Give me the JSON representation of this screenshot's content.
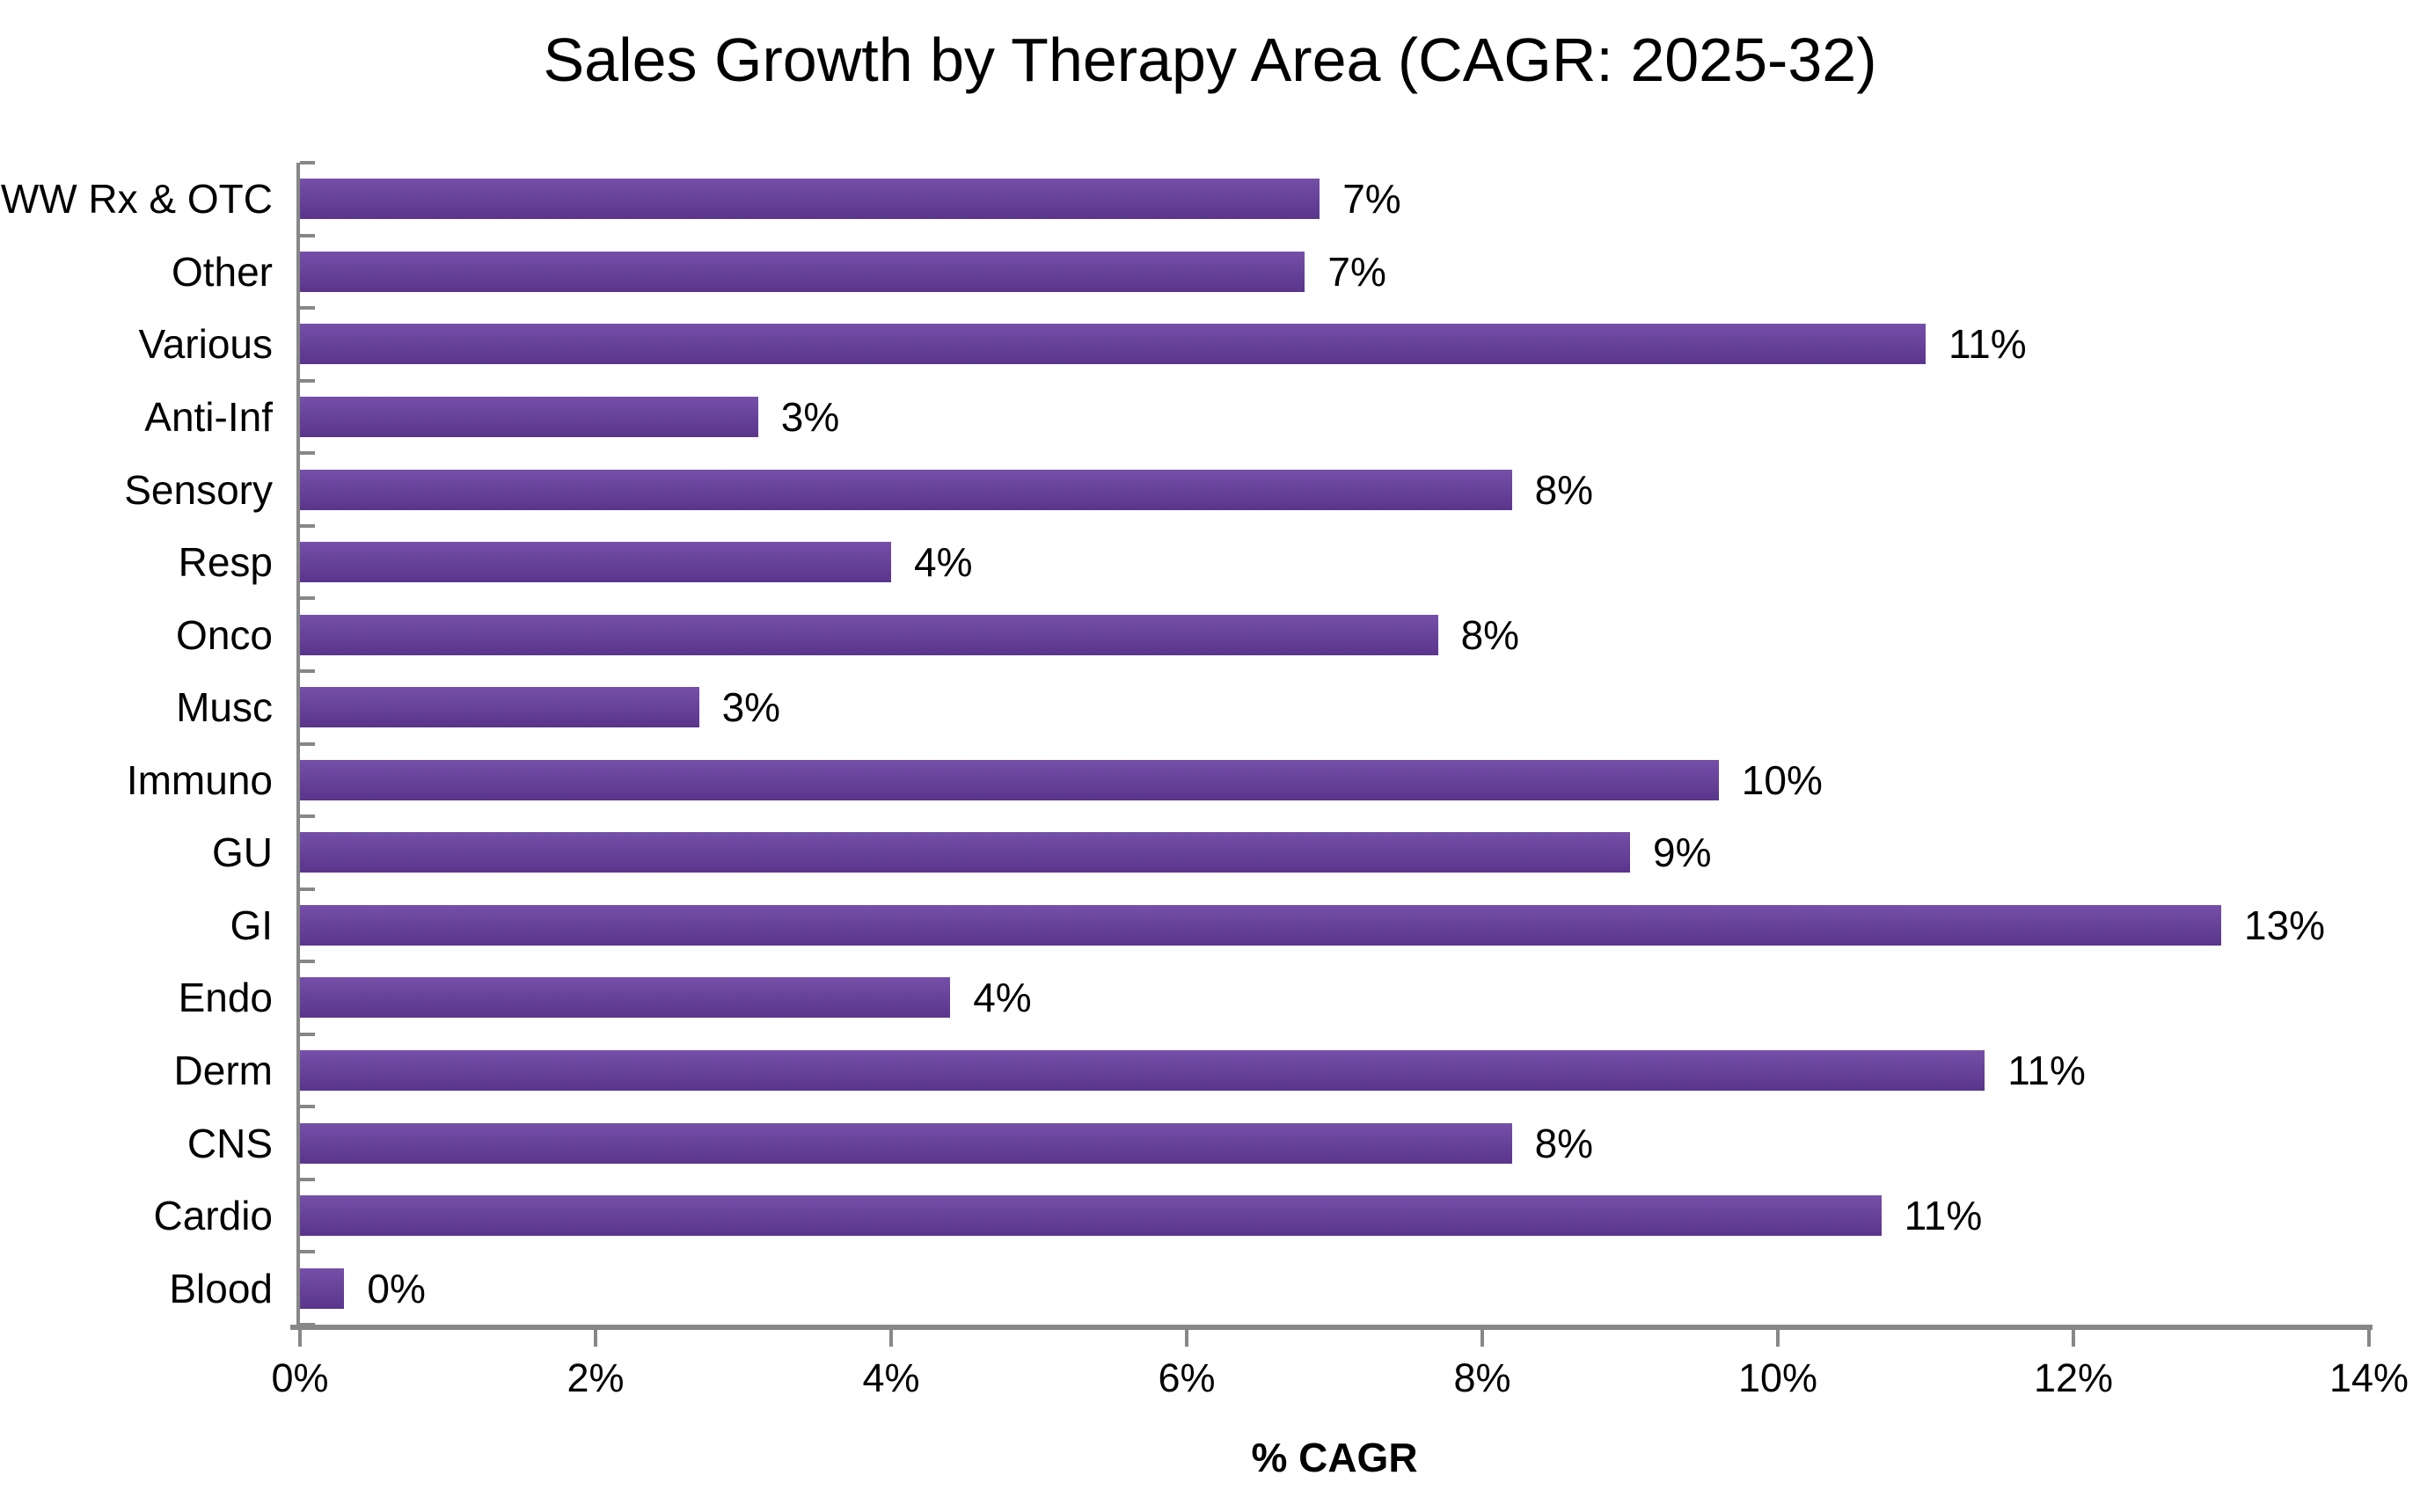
{
  "title": "Sales Growth by Therapy Area (CAGR: 2025-32)",
  "chart_data": {
    "type": "bar",
    "orientation": "horizontal",
    "title": "Sales Growth by Therapy Area (CAGR: 2025-32)",
    "xlabel": "% CAGR",
    "ylabel": "",
    "xlim": [
      0,
      14
    ],
    "x_tick_labels": [
      "0%",
      "2%",
      "4%",
      "6%",
      "8%",
      "10%",
      "12%",
      "14%"
    ],
    "grid": false,
    "legend": false,
    "bar_color": "#663C9E",
    "axis_color": "#878787",
    "text_color": "#000000",
    "categories": [
      "WW Rx & OTC",
      "Other",
      "Various",
      "Anti-Inf",
      "Sensory",
      "Resp",
      "Onco",
      "Musc",
      "Immuno",
      "GU",
      "GI",
      "Endo",
      "Derm",
      "CNS",
      "Cardio",
      "Blood"
    ],
    "values": [
      6.9,
      6.8,
      11.0,
      3.1,
      8.2,
      4.0,
      7.7,
      2.7,
      9.6,
      9.0,
      13.0,
      4.4,
      11.4,
      8.2,
      10.7,
      0.3
    ],
    "value_labels": [
      "7%",
      "7%",
      "11%",
      "3%",
      "8%",
      "4%",
      "8%",
      "3%",
      "10%",
      "9%",
      "13%",
      "4%",
      "11%",
      "8%",
      "11%",
      "0%"
    ]
  }
}
